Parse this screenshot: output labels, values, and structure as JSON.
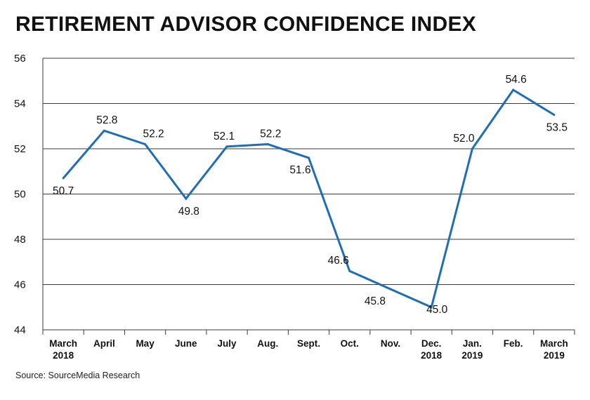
{
  "title": "RETIREMENT ADVISOR CONFIDENCE INDEX",
  "source": "Source: SourceMedia Research",
  "chart_data": {
    "type": "line",
    "title": "RETIREMENT ADVISOR CONFIDENCE INDEX",
    "categories": [
      [
        "March",
        "2018"
      ],
      [
        "April"
      ],
      [
        "May"
      ],
      [
        "June"
      ],
      [
        "July"
      ],
      [
        "Aug."
      ],
      [
        "Sept."
      ],
      [
        "Oct."
      ],
      [
        "Nov."
      ],
      [
        "Dec.",
        "2018"
      ],
      [
        "Jan.",
        "2019"
      ],
      [
        "Feb."
      ],
      [
        "March",
        "2019"
      ]
    ],
    "values": [
      50.7,
      52.8,
      52.2,
      49.8,
      52.1,
      52.2,
      51.6,
      46.6,
      45.8,
      45.0,
      52.0,
      54.6,
      53.5
    ],
    "data_labels": [
      "50.7",
      "52.8",
      "52.2",
      "49.8",
      "52.1",
      "52.2",
      "51.6",
      "46.6",
      "45.8",
      "45.0",
      "52.0",
      "54.6",
      "53.5"
    ],
    "ylim": [
      44,
      56
    ],
    "yticks": [
      44,
      46,
      48,
      50,
      52,
      54,
      56
    ],
    "grid": true,
    "line_color": "#1f6db5"
  }
}
